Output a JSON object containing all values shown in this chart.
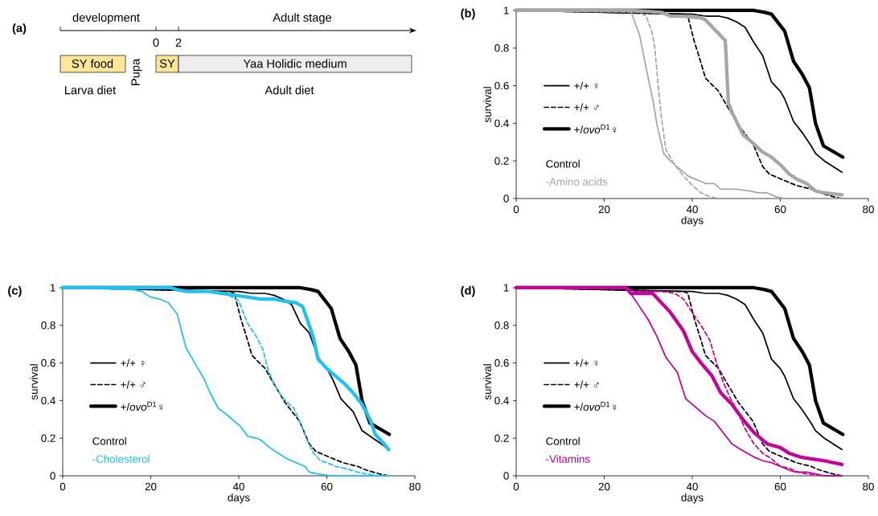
{
  "chart_data": [
    {
      "type": "other",
      "title": "(a)",
      "annotations": [
        "development",
        "Adult stage",
        "0",
        "2",
        "SY food",
        "Pupa",
        "SY",
        "Yaa Holidic medium",
        "Larva diet",
        "Adult diet"
      ]
    },
    {
      "type": "line",
      "title": "(b)",
      "xlabel": "days",
      "ylabel": "survival",
      "xlim": [
        0,
        80
      ],
      "ylim": [
        0,
        1
      ],
      "xticks": [
        0,
        20,
        40,
        60,
        80
      ],
      "yticks": [
        0,
        0.2,
        0.4,
        0.6,
        0.8,
        1
      ],
      "legend": "left",
      "annotations": [
        "Control",
        "-Amino acids"
      ],
      "series": [
        {
          "name": "+/+ ♀",
          "color": "#000000",
          "line_style": "solid",
          "x": [
            0,
            20,
            40,
            43,
            46,
            48,
            50,
            52,
            54,
            56,
            58,
            60,
            61,
            63,
            65,
            67,
            68,
            70,
            72,
            74
          ],
          "values": [
            1,
            0.99,
            0.98,
            0.97,
            0.97,
            0.96,
            0.94,
            0.91,
            0.83,
            0.76,
            0.62,
            0.57,
            0.53,
            0.41,
            0.35,
            0.28,
            0.24,
            0.2,
            0.17,
            0.14
          ]
        },
        {
          "name": "+/+ ♂",
          "color": "#000000",
          "line_style": "dashed",
          "x": [
            0,
            20,
            36,
            38,
            39,
            40.4,
            42,
            43,
            46,
            47.7,
            50.5,
            53.8,
            56,
            57.5,
            60.5,
            63.6,
            67,
            69,
            72,
            74
          ],
          "values": [
            1,
            0.99,
            0.98,
            0.98,
            0.97,
            0.84,
            0.72,
            0.64,
            0.57,
            0.5,
            0.39,
            0.29,
            0.17,
            0.13,
            0.1,
            0.07,
            0.05,
            0.03,
            0.01,
            0
          ]
        },
        {
          "name": "+/*ovo*$^{D1}$♀",
          "color": "#000000",
          "line_style": "solid",
          "x": [
            0,
            54,
            56.5,
            58,
            61,
            63,
            65,
            66.6,
            68,
            69.8,
            72,
            74.2
          ],
          "values": [
            1,
            1,
            0.99,
            0.98,
            0.89,
            0.73,
            0.66,
            0.59,
            0.4,
            0.28,
            0.25,
            0.22
          ]
        },
        {
          "color": "#a6a6a6",
          "line_style": "solid",
          "x": [
            0,
            26,
            28,
            30,
            31,
            32,
            33.5,
            35,
            37,
            39,
            41,
            43,
            45,
            46.5,
            50,
            53,
            55,
            57,
            59,
            61,
            74
          ],
          "values": [
            1,
            1,
            0.87,
            0.64,
            0.53,
            0.39,
            0.24,
            0.2,
            0.16,
            0.12,
            0.1,
            0.08,
            0.08,
            0.05,
            0.05,
            0.04,
            0.03,
            0.03,
            0.01,
            0,
            0
          ]
        },
        {
          "color": "#a6a6a6",
          "line_style": "dashed",
          "x": [
            0,
            28,
            29.5,
            30.8,
            31.5,
            32.3,
            33,
            34,
            36,
            38,
            40,
            42,
            44,
            46,
            74
          ],
          "values": [
            1,
            0.99,
            0.97,
            0.89,
            0.8,
            0.59,
            0.43,
            0.26,
            0.18,
            0.12,
            0.07,
            0.03,
            0.01,
            0,
            0
          ]
        },
        {
          "color": "#a6a6a6",
          "line_style": "solid",
          "x": [
            0,
            26,
            33,
            35,
            38,
            42,
            43,
            47.5,
            48.2,
            49,
            51.5,
            54,
            55.8,
            58,
            60,
            62,
            64,
            66,
            68,
            70,
            74
          ],
          "values": [
            1,
            1,
            0.99,
            0.97,
            0.97,
            0.96,
            0.95,
            0.84,
            0.51,
            0.46,
            0.34,
            0.29,
            0.25,
            0.22,
            0.18,
            0.13,
            0.1,
            0.08,
            0.04,
            0.03,
            0.02
          ]
        }
      ]
    },
    {
      "type": "line",
      "title": "(c)",
      "xlabel": "days",
      "ylabel": "survival",
      "xlim": [
        0,
        80
      ],
      "ylim": [
        0,
        1
      ],
      "xticks": [
        0,
        20,
        40,
        60,
        80
      ],
      "yticks": [
        0,
        0.2,
        0.4,
        0.6,
        0.8,
        1
      ],
      "legend": "left",
      "annotations": [
        "Control",
        "-Cholesterol"
      ],
      "series": [
        {
          "name": "+/+ ♀",
          "color": "#000000",
          "line_style": "solid",
          "x": [
            0,
            20,
            40,
            43,
            46,
            48,
            50,
            52,
            54,
            56,
            58,
            60,
            61.4,
            63.2,
            66,
            68,
            70.5,
            74.2
          ],
          "values": [
            1,
            0.99,
            0.98,
            0.97,
            0.97,
            0.96,
            0.94,
            0.91,
            0.81,
            0.76,
            0.63,
            0.57,
            0.51,
            0.41,
            0.34,
            0.24,
            0.2,
            0.14
          ]
        },
        {
          "name": "+/+ ♂",
          "color": "#000000",
          "line_style": "dashed",
          "x": [
            0,
            20,
            36,
            38,
            39,
            40.4,
            42,
            43,
            46,
            47.7,
            50.5,
            53.8,
            56,
            57.5,
            60.5,
            63.6,
            67,
            69,
            72,
            74
          ],
          "values": [
            1,
            0.99,
            0.98,
            0.98,
            0.97,
            0.84,
            0.72,
            0.64,
            0.57,
            0.5,
            0.39,
            0.29,
            0.17,
            0.13,
            0.1,
            0.07,
            0.05,
            0.03,
            0.01,
            0
          ]
        },
        {
          "name": "+/*ovo*$^{D1}$♀",
          "color": "#000000",
          "line_style": "solid",
          "x": [
            0,
            54,
            56.5,
            58,
            61,
            63,
            65,
            66.6,
            68,
            69.8,
            72,
            74.2
          ],
          "values": [
            1,
            1,
            0.99,
            0.98,
            0.89,
            0.73,
            0.66,
            0.59,
            0.4,
            0.28,
            0.25,
            0.22
          ]
        },
        {
          "color": "#1fc1f0",
          "line_style": "solid",
          "x": [
            0,
            16,
            18,
            20,
            22,
            24,
            26,
            28,
            30,
            32,
            33.5,
            35.3,
            37,
            39,
            40.5,
            42,
            44,
            45,
            47,
            49,
            51,
            53,
            55,
            56,
            58,
            61,
            74
          ],
          "values": [
            1,
            0.99,
            0.98,
            0.95,
            0.94,
            0.92,
            0.86,
            0.68,
            0.6,
            0.52,
            0.44,
            0.36,
            0.33,
            0.29,
            0.26,
            0.21,
            0.2,
            0.19,
            0.15,
            0.12,
            0.09,
            0.07,
            0.05,
            0.02,
            0.01,
            0,
            0
          ]
        },
        {
          "color": "#1fc1f0",
          "line_style": "dashed",
          "x": [
            0,
            25,
            28,
            35,
            37,
            38.5,
            40,
            42,
            44,
            45.5,
            46.7,
            48,
            49.5,
            51,
            52.5,
            54,
            55.5,
            57,
            58.5,
            60,
            62,
            64,
            67,
            69,
            72,
            74
          ],
          "values": [
            1,
            1,
            0.98,
            0.98,
            0.97,
            0.95,
            0.93,
            0.81,
            0.74,
            0.67,
            0.56,
            0.49,
            0.43,
            0.39,
            0.36,
            0.28,
            0.19,
            0.12,
            0.08,
            0.07,
            0.05,
            0.04,
            0.02,
            0.01,
            0,
            0
          ]
        },
        {
          "color": "#1fc1f0",
          "line_style": "solid",
          "x": [
            0,
            24.5,
            26,
            28,
            33,
            36,
            39,
            42,
            45,
            48,
            50,
            53,
            54.5,
            56,
            57,
            58,
            60,
            62,
            64,
            66,
            68,
            69.8,
            71,
            73,
            74
          ],
          "values": [
            1,
            1,
            0.99,
            0.98,
            0.98,
            0.97,
            0.96,
            0.95,
            0.94,
            0.94,
            0.93,
            0.92,
            0.9,
            0.8,
            0.73,
            0.62,
            0.57,
            0.53,
            0.49,
            0.44,
            0.38,
            0.3,
            0.22,
            0.17,
            0.14
          ]
        }
      ]
    },
    {
      "type": "line",
      "title": "(d)",
      "xlabel": "days",
      "ylabel": "survival",
      "xlim": [
        0,
        80
      ],
      "ylim": [
        0,
        1
      ],
      "xticks": [
        0,
        20,
        40,
        60,
        80
      ],
      "yticks": [
        0,
        0.2,
        0.4,
        0.6,
        0.8,
        1
      ],
      "legend": "left",
      "annotations": [
        "Control",
        "-Vitamins"
      ],
      "series": [
        {
          "name": "+/+ ♀",
          "color": "#000000",
          "line_style": "solid",
          "x": [
            0,
            20,
            40,
            43,
            46,
            48,
            50,
            52,
            54,
            56,
            58,
            60,
            61,
            63,
            65,
            67,
            68,
            70,
            72,
            74
          ],
          "values": [
            1,
            0.99,
            0.98,
            0.97,
            0.97,
            0.96,
            0.94,
            0.91,
            0.83,
            0.76,
            0.62,
            0.57,
            0.53,
            0.41,
            0.35,
            0.28,
            0.24,
            0.2,
            0.17,
            0.14
          ]
        },
        {
          "name": "+/+ ♂",
          "color": "#000000",
          "line_style": "dashed",
          "x": [
            0,
            20,
            36,
            38,
            39,
            40.4,
            42,
            43,
            46,
            47.7,
            50.5,
            53.8,
            56,
            57.5,
            60.5,
            63.6,
            67,
            69,
            72,
            74
          ],
          "values": [
            1,
            0.99,
            0.98,
            0.98,
            0.97,
            0.84,
            0.72,
            0.64,
            0.57,
            0.5,
            0.39,
            0.29,
            0.17,
            0.13,
            0.1,
            0.07,
            0.05,
            0.03,
            0.01,
            0
          ]
        },
        {
          "name": "+/*ovo*$^{D1}$♀",
          "color": "#000000",
          "line_style": "solid",
          "x": [
            0,
            54,
            56.5,
            58,
            61,
            63,
            65,
            66.6,
            68,
            69.8,
            72,
            74.2
          ],
          "values": [
            1,
            1,
            0.99,
            0.98,
            0.89,
            0.73,
            0.66,
            0.59,
            0.4,
            0.28,
            0.25,
            0.22
          ]
        },
        {
          "color": "#c8009a",
          "line_style": "solid",
          "x": [
            0,
            24.5,
            26,
            28,
            30,
            32,
            34,
            36.6,
            38.5,
            40.5,
            43,
            45,
            47,
            49,
            51,
            52.5,
            54,
            56,
            58,
            60,
            62,
            63.5,
            66,
            68,
            70,
            74
          ],
          "values": [
            1,
            1,
            0.97,
            0.9,
            0.83,
            0.74,
            0.63,
            0.55,
            0.41,
            0.37,
            0.32,
            0.29,
            0.23,
            0.17,
            0.14,
            0.12,
            0.1,
            0.08,
            0.07,
            0.05,
            0.03,
            0.02,
            0.02,
            0.01,
            0,
            0
          ]
        },
        {
          "color": "#c8009a",
          "line_style": "dashed",
          "x": [
            0,
            25,
            27,
            33,
            36,
            38,
            40.5,
            42,
            44,
            45.5,
            47,
            48.5,
            50.5,
            52,
            54,
            56,
            58,
            60,
            62,
            64,
            66,
            70,
            74
          ],
          "values": [
            1,
            1,
            0.98,
            0.98,
            0.97,
            0.94,
            0.85,
            0.8,
            0.72,
            0.6,
            0.5,
            0.42,
            0.33,
            0.25,
            0.17,
            0.12,
            0.09,
            0.05,
            0.04,
            0.02,
            0.01,
            0,
            0
          ]
        },
        {
          "color": "#c8009a",
          "line_style": "solid",
          "x": [
            0,
            25,
            26,
            31,
            33,
            35,
            38,
            40,
            42,
            44.5,
            46.5,
            49,
            51.5,
            54,
            57,
            60,
            62,
            64.5,
            67,
            70,
            74
          ],
          "values": [
            1,
            1,
            0.97,
            0.97,
            0.92,
            0.87,
            0.77,
            0.66,
            0.6,
            0.53,
            0.44,
            0.38,
            0.3,
            0.23,
            0.17,
            0.15,
            0.12,
            0.1,
            0.09,
            0.08,
            0.06
          ]
        }
      ]
    }
  ]
}
